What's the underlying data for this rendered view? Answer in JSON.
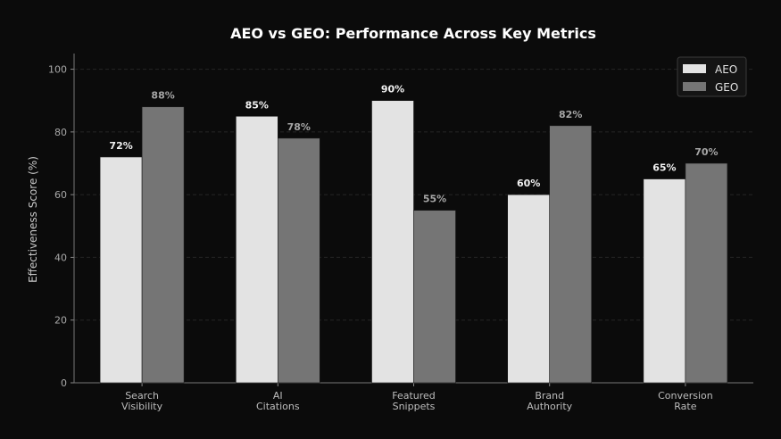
{
  "chart_data": {
    "type": "bar",
    "title": "AEO vs GEO: Performance Across Key Metrics",
    "xlabel": "",
    "ylabel": "Effectiveness Score (%)",
    "ylim": [
      0,
      105
    ],
    "yticks": [
      0,
      20,
      40,
      60,
      80,
      100
    ],
    "categories": [
      [
        "Search",
        "Visibility"
      ],
      [
        "AI",
        "Citations"
      ],
      [
        "Featured",
        "Snippets"
      ],
      [
        "Brand",
        "Authority"
      ],
      [
        "Conversion",
        "Rate"
      ]
    ],
    "series": [
      {
        "name": "AEO",
        "values": [
          72,
          85,
          90,
          60,
          65
        ],
        "color": "#e3e3e3",
        "label_color": "#f2f2f2",
        "labels": [
          "72%",
          "85%",
          "90%",
          "60%",
          "65%"
        ]
      },
      {
        "name": "GEO",
        "values": [
          88,
          78,
          55,
          82,
          70
        ],
        "color": "#757575",
        "label_color": "#a6a6a6",
        "labels": [
          "88%",
          "78%",
          "55%",
          "82%",
          "70%"
        ]
      }
    ],
    "grid": true,
    "legend_position": "top-right"
  }
}
